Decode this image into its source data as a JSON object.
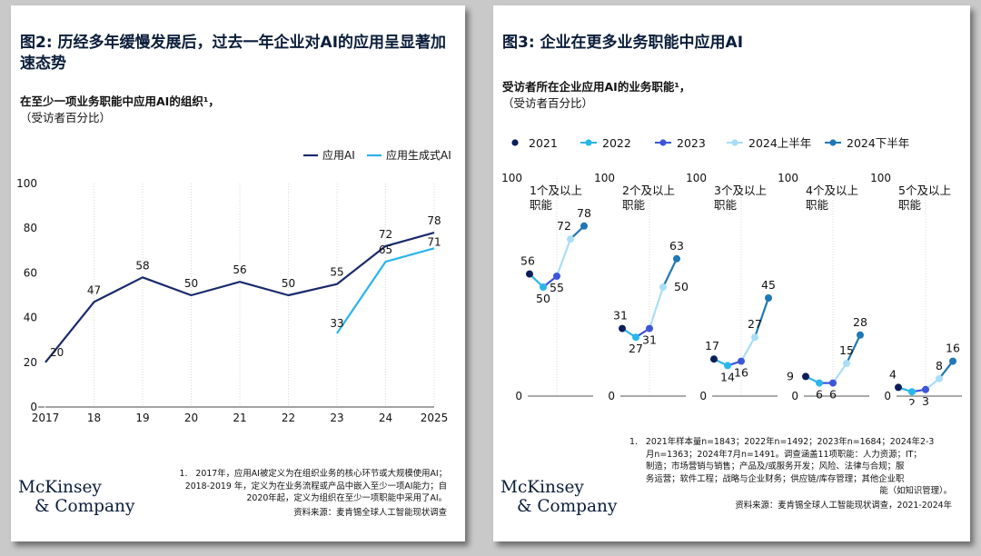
{
  "left": {
    "title": "图2: 历经多年缓慢发展后，过去一年企业对AI的应用呈显著加速态势",
    "subtitle": "在至少一项业务职能中应用AI的组织¹，",
    "unit": "（受访者百分比）",
    "note": [
      "1.   2017年，应用AI被定义为在组织业务的核心环节或大规模使用AI；",
      "2018-2019 年，定义为在业务流程或产品中嵌入至少一项AI能力；自",
      "2020年起，定义为组织在至少一项职能中采用了AI。"
    ],
    "source": "资料来源：麦肯锡全球人工智能现状调查",
    "logo": [
      "McKinsey",
      "& Company"
    ]
  },
  "right": {
    "title": "图3: 企业在更多业务职能中应用AI",
    "subtitle": "受访者所在企业应用AI的业务职能¹，",
    "unit": "（受访者百分比）",
    "note": [
      "1.   2021年样本量n=1843；2022年n=1492；2023年n=1684；2024年2-3",
      "月n=1363；2024年7月n=1491。调查涵盖11项职能：人力资源；IT；",
      "制造；市场营销与销售；产品及/或服务开发；风险、法律与合规；服",
      "务运营；软件工程；战略与企业财务；供应链/库存管理；其他企业职",
      "能（如知识管理）。"
    ],
    "source": "资料来源：麦肯锡全球人工智能现状调查，2021-2024年",
    "logo": [
      "McKinsey",
      "& Company"
    ]
  },
  "chart_data": [
    {
      "type": "line",
      "x": [
        "2017",
        "18",
        "19",
        "20",
        "21",
        "22",
        "23",
        "24",
        "2025"
      ],
      "yticks": [
        0,
        20,
        40,
        60,
        80,
        100
      ],
      "ylim": [
        0,
        100
      ],
      "series": [
        {
          "name": "应用AI",
          "color": "#1a2a6c",
          "values": [
            20,
            47,
            58,
            50,
            56,
            50,
            55,
            72,
            78
          ]
        },
        {
          "name": "应用生成式AI",
          "color": "#2bb5ea",
          "values": [
            null,
            null,
            null,
            null,
            null,
            null,
            33,
            65,
            71
          ]
        }
      ],
      "legend": "top-right",
      "grid": "vertical"
    },
    {
      "type": "line",
      "legend": [
        "2021",
        "2022",
        "2023",
        "2024上半年",
        "2024下半年"
      ],
      "legend_colors": [
        "#0b1d5a",
        "#29b6ea",
        "#3d56d9",
        "#a9def6",
        "#1f78b4"
      ],
      "ylim": [
        0,
        100
      ],
      "ytick_labels": [
        "100",
        "0"
      ],
      "panels": [
        {
          "label": "1个及以上职能",
          "label_lines": [
            "1个及以上",
            "职能"
          ],
          "values": [
            56,
            50,
            55,
            72,
            78
          ],
          "value_labels": [
            "56",
            "50",
            "55",
            "72",
            "78"
          ]
        },
        {
          "label": "2个及以上职能",
          "label_lines": [
            "2个及以上",
            "职能"
          ],
          "values": [
            31,
            27,
            31,
            50,
            63
          ],
          "value_labels": [
            "31",
            "27",
            "31",
            "50",
            "63"
          ]
        },
        {
          "label": "3个及以上职能",
          "label_lines": [
            "3个及以上",
            "职能"
          ],
          "values": [
            17,
            14,
            16,
            27,
            45
          ],
          "value_labels": [
            "17",
            "14",
            "16",
            "27",
            "45"
          ]
        },
        {
          "label": "4个及以上职能",
          "label_lines": [
            "4个及以上",
            "职能"
          ],
          "values": [
            9,
            6,
            6,
            15,
            28
          ],
          "value_labels": [
            "9",
            "6",
            "6",
            "15",
            "28"
          ]
        },
        {
          "label": "5个及以上职能",
          "label_lines": [
            "5个及以上",
            "职能"
          ],
          "values": [
            4,
            2,
            3,
            8,
            16
          ],
          "value_labels": [
            "4",
            "2",
            "3",
            "8",
            "16"
          ]
        }
      ]
    }
  ]
}
